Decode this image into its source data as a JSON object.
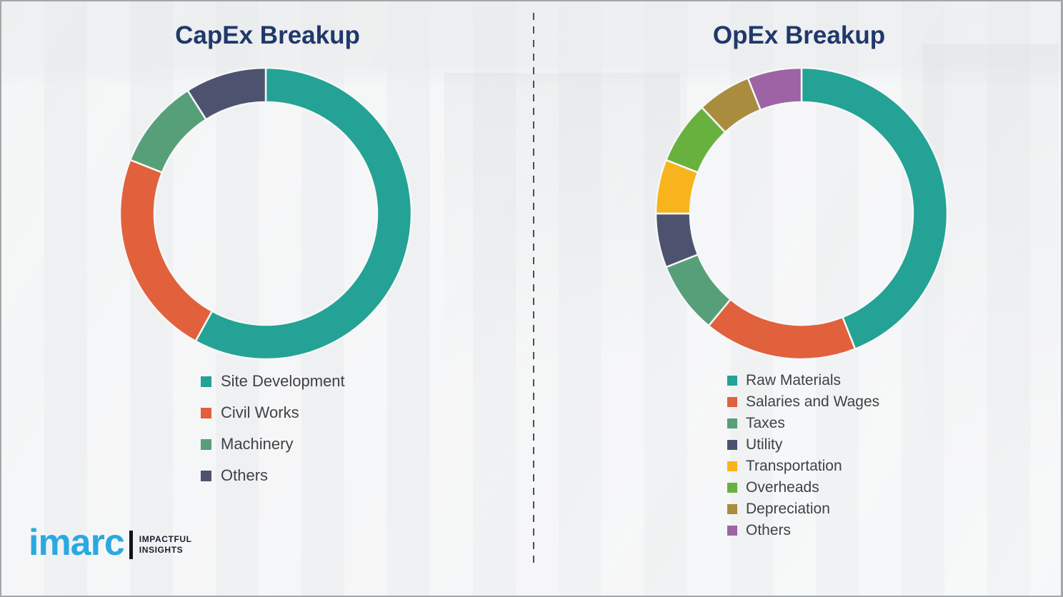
{
  "chart_data": [
    {
      "type": "pie",
      "variant": "donut",
      "title": "CapEx Breakup",
      "categories": [
        "Site Development",
        "Civil Works",
        "Machinery",
        "Others"
      ],
      "values": [
        58,
        23,
        10,
        9
      ],
      "colors": [
        "#23A295",
        "#E0613C",
        "#579F79",
        "#4D536F"
      ],
      "start_angle_deg": 0,
      "direction": "clockwise",
      "legend_position": "below-left",
      "data_labels": false
    },
    {
      "type": "pie",
      "variant": "donut",
      "title": "OpEx Breakup",
      "categories": [
        "Raw Materials",
        "Salaries and Wages",
        "Taxes",
        "Utility",
        "Transportation",
        "Overheads",
        "Depreciation",
        "Others"
      ],
      "values": [
        44,
        17,
        8,
        6,
        6,
        7,
        6,
        6
      ],
      "colors": [
        "#23A295",
        "#E0613C",
        "#579F79",
        "#4D536F",
        "#F7B41C",
        "#69B13F",
        "#A98C3E",
        "#9D63A5"
      ],
      "start_angle_deg": 0,
      "direction": "clockwise",
      "legend_position": "below-left",
      "data_labels": false
    }
  ],
  "divider": {
    "style": "dashed-vertical"
  },
  "logo": {
    "brand": "imarc",
    "tagline_line1": "IMPACTFUL",
    "tagline_line2": "INSIGHTS",
    "brand_color": "#2AA9E1"
  },
  "colors": {
    "title": "#20386B",
    "legend_text": "#3E4147",
    "background": "#F2F3F4",
    "border": "#A3A7AA"
  }
}
